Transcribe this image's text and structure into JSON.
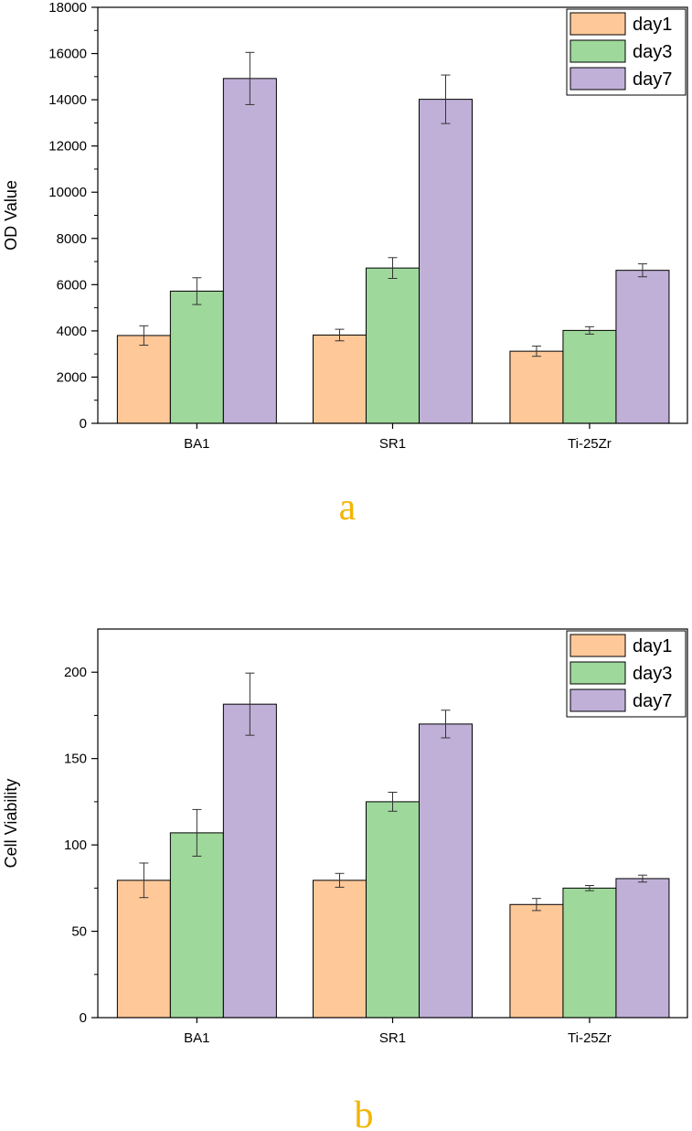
{
  "chart_data": [
    {
      "type": "bar",
      "panel_label": "a",
      "ylabel": "OD Value",
      "xlabel": "",
      "categories": [
        "BA1",
        "SR1",
        "Ti-25Zr"
      ],
      "ylim": [
        0,
        18000
      ],
      "yticks": [
        0,
        2000,
        4000,
        6000,
        8000,
        10000,
        12000,
        14000,
        16000,
        18000
      ],
      "legend_position": "top-right",
      "series": [
        {
          "name": "day1",
          "color": "#ffc899",
          "values": [
            3800,
            3820,
            3120
          ],
          "errors": [
            420,
            250,
            220
          ]
        },
        {
          "name": "day3",
          "color": "#9ed89b",
          "values": [
            5720,
            6720,
            4020
          ],
          "errors": [
            580,
            450,
            160
          ]
        },
        {
          "name": "day7",
          "color": "#c0b0d8",
          "values": [
            14920,
            14020,
            6620
          ],
          "errors": [
            1130,
            1050,
            280
          ]
        }
      ]
    },
    {
      "type": "bar",
      "panel_label": "b",
      "ylabel": "Cell Viability",
      "xlabel": "",
      "categories": [
        "BA1",
        "SR1",
        "Ti-25Zr"
      ],
      "ylim": [
        0,
        225
      ],
      "yticks": [
        0,
        50,
        100,
        150,
        200
      ],
      "legend_position": "top-right",
      "series": [
        {
          "name": "day1",
          "color": "#ffc899",
          "values": [
            79.5,
            79.5,
            65.5
          ],
          "errors": [
            10,
            4,
            3.5
          ]
        },
        {
          "name": "day3",
          "color": "#9ed89b",
          "values": [
            107,
            125,
            75
          ],
          "errors": [
            13.5,
            5.5,
            1.5
          ]
        },
        {
          "name": "day7",
          "color": "#c0b0d8",
          "values": [
            181.5,
            170,
            80.5
          ],
          "errors": [
            18,
            8,
            2
          ]
        }
      ]
    }
  ],
  "panel_label_color": "#f2b500"
}
